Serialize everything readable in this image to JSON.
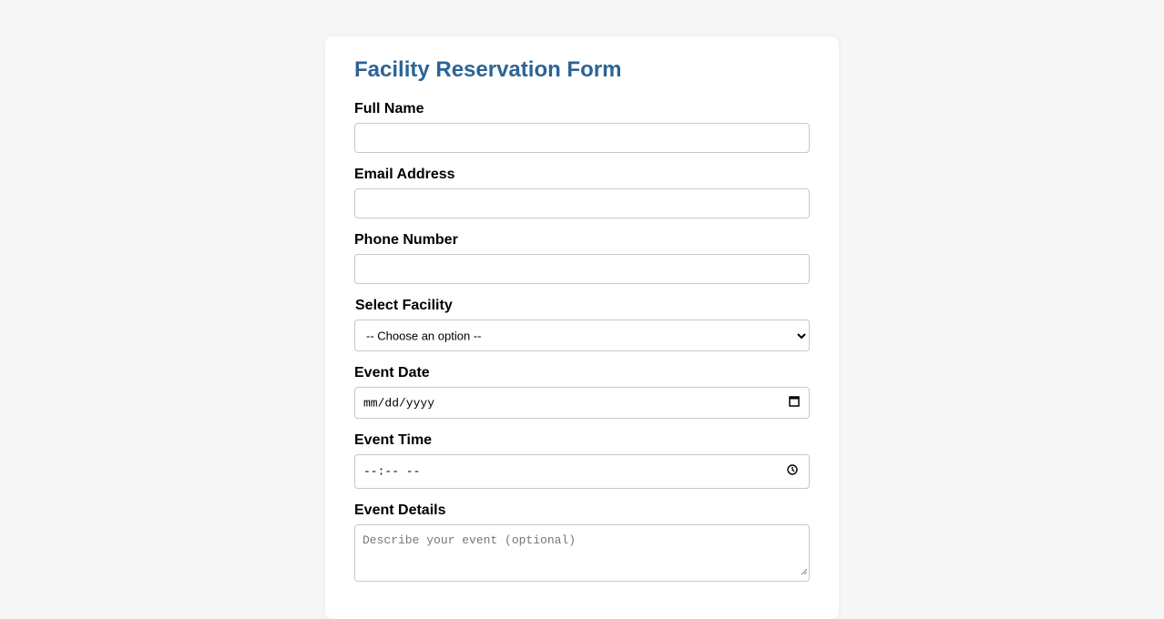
{
  "form": {
    "title": "Facility Reservation Form",
    "full_name": {
      "label": "Full Name",
      "value": ""
    },
    "email": {
      "label": "Email Address",
      "value": ""
    },
    "phone": {
      "label": "Phone Number",
      "value": ""
    },
    "facility": {
      "label": "Select Facility",
      "selected": "-- Choose an option --"
    },
    "date": {
      "label": "Event Date",
      "placeholder": "mm/dd/yyyy"
    },
    "time": {
      "label": "Event Time",
      "placeholder": "--:-- --"
    },
    "details": {
      "label": "Event Details",
      "placeholder": "Describe your event (optional)"
    }
  },
  "icons": {
    "select": "chevron-down-icon",
    "date": "calendar-icon",
    "time": "clock-icon"
  }
}
